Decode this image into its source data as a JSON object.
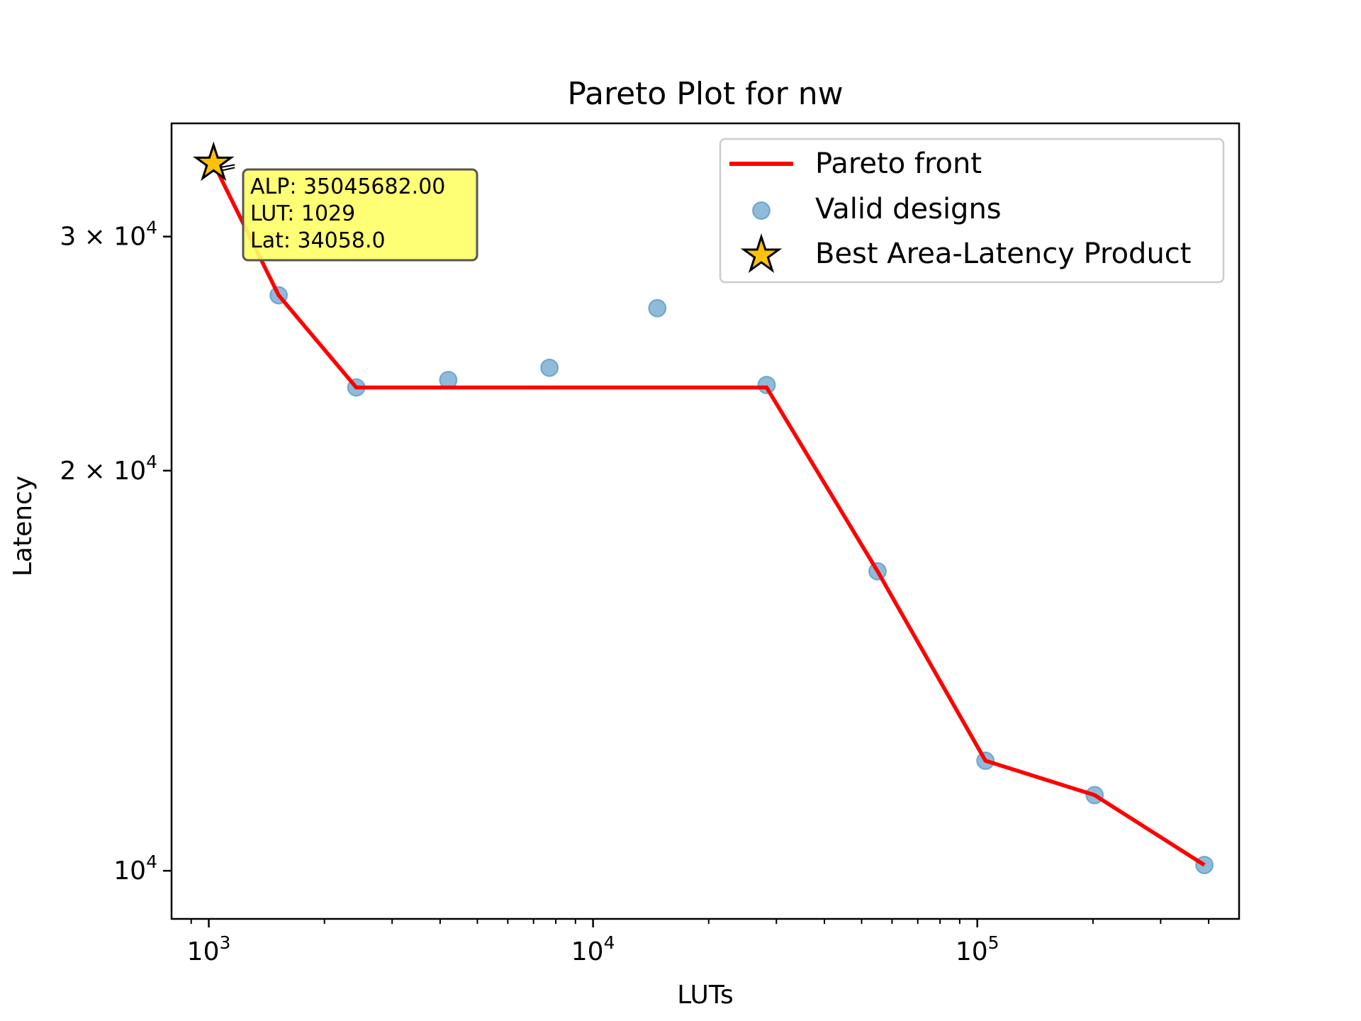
{
  "chart_data": {
    "type": "scatter",
    "title": "Pareto Plot for nw",
    "xlabel": "LUTs",
    "ylabel": "Latency",
    "x_scale": "log",
    "y_scale": "log",
    "xlim": [
      800,
      480000
    ],
    "ylim": [
      9200,
      36500
    ],
    "x_ticks": [
      {
        "value": 1000,
        "base": "10",
        "exp": "3"
      },
      {
        "value": 10000,
        "base": "10",
        "exp": "4"
      },
      {
        "value": 100000,
        "base": "10",
        "exp": "5"
      }
    ],
    "y_ticks": [
      {
        "value": 10000,
        "coef": "",
        "base": "10",
        "exp": "4"
      },
      {
        "value": 20000,
        "coef": "2 × ",
        "base": "10",
        "exp": "4"
      },
      {
        "value": 30000,
        "coef": "3 × ",
        "base": "10",
        "exp": "4"
      }
    ],
    "grid": false,
    "legend_position": "top-right",
    "series": [
      {
        "name": "Valid designs",
        "kind": "scatter",
        "color": "#1f77b4",
        "points": [
          {
            "x": 1029,
            "y": 34058
          },
          {
            "x": 1520,
            "y": 27100
          },
          {
            "x": 2420,
            "y": 23100
          },
          {
            "x": 4200,
            "y": 23400
          },
          {
            "x": 7700,
            "y": 23900
          },
          {
            "x": 14700,
            "y": 26500
          },
          {
            "x": 28300,
            "y": 23200
          },
          {
            "x": 55000,
            "y": 16800
          },
          {
            "x": 105000,
            "y": 12100
          },
          {
            "x": 202000,
            "y": 11400
          },
          {
            "x": 390000,
            "y": 10100
          }
        ]
      },
      {
        "name": "Pareto front",
        "kind": "line",
        "color": "#ff0000",
        "points": [
          {
            "x": 1029,
            "y": 34058
          },
          {
            "x": 1520,
            "y": 27100
          },
          {
            "x": 2420,
            "y": 23100
          },
          {
            "x": 28300,
            "y": 23100
          },
          {
            "x": 55000,
            "y": 16800
          },
          {
            "x": 105000,
            "y": 12100
          },
          {
            "x": 202000,
            "y": 11400
          },
          {
            "x": 390000,
            "y": 10100
          }
        ]
      },
      {
        "name": "Best Area-Latency Product",
        "kind": "marker",
        "color": "#ffc107",
        "points": [
          {
            "x": 1029,
            "y": 34058
          }
        ]
      }
    ],
    "legend": [
      {
        "label": "Pareto front",
        "kind": "line",
        "color": "#ff0000"
      },
      {
        "label": "Valid designs",
        "kind": "scatter",
        "color": "#1f77b4"
      },
      {
        "label": "Best Area-Latency Product",
        "kind": "marker",
        "color": "#ffc107"
      }
    ],
    "annotation": {
      "lines": [
        "ALP: 35045682.00",
        "LUT: 1029",
        "Lat: 34058.0"
      ],
      "background": "#ffff66"
    }
  }
}
